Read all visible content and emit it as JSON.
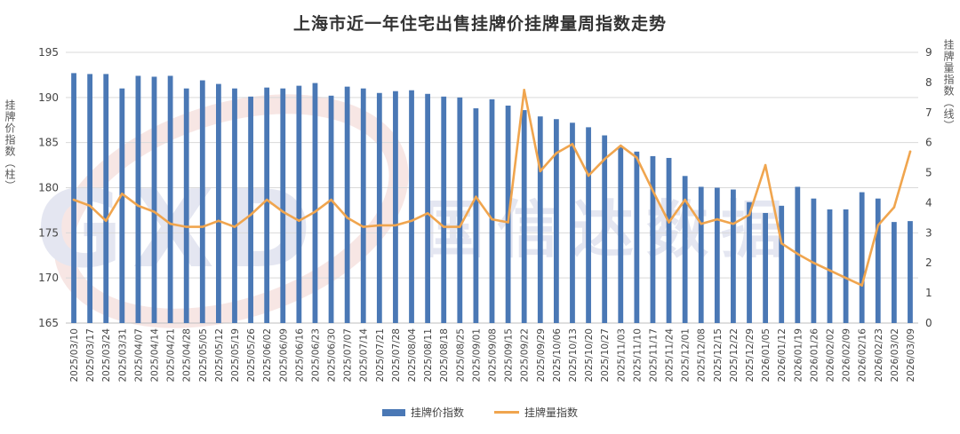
{
  "chart_data": {
    "type": "bar",
    "title": "上海市近一年住宅出售挂牌价挂牌量周指数走势",
    "ylabel_left": "挂牌价指数（柱）",
    "ylabel_right": "挂牌量指数（线）",
    "ylim_left": [
      165,
      195
    ],
    "yticks_left": [
      165,
      170,
      175,
      180,
      185,
      190,
      195
    ],
    "ylim_right": [
      0,
      9
    ],
    "yticks_right": [
      0,
      1,
      2,
      3,
      4,
      5,
      6,
      7,
      8,
      9
    ],
    "grid": true,
    "legend_placement": "bottom",
    "colors": {
      "bars": "#4A78B5",
      "line": "#F0A54E"
    },
    "categories": [
      "2025/03/10",
      "2025/03/17",
      "2025/03/24",
      "2025/03/31",
      "2025/04/07",
      "2025/04/14",
      "2025/04/21",
      "2025/04/28",
      "2025/05/05",
      "2025/05/12",
      "2025/05/19",
      "2025/05/26",
      "2025/06/02",
      "2025/06/09",
      "2025/06/16",
      "2025/06/23",
      "2025/06/30",
      "2025/07/07",
      "2025/07/14",
      "2025/07/21",
      "2025/07/28",
      "2025/08/04",
      "2025/08/11",
      "2025/08/18",
      "2025/08/25",
      "2025/09/01",
      "2025/09/08",
      "2025/09/15",
      "2025/09/22",
      "2025/09/29",
      "2025/10/06",
      "2025/10/13",
      "2025/10/20",
      "2025/10/27",
      "2025/11/03",
      "2025/11/10",
      "2025/11/17",
      "2025/11/24",
      "2025/12/01",
      "2025/12/08",
      "2025/12/15",
      "2025/12/22",
      "2025/12/29",
      "2026/01/05",
      "2026/01/12",
      "2026/01/19",
      "2026/01/26",
      "2026/02/02",
      "2026/02/09",
      "2026/02/16",
      "2026/02/23",
      "2026/03/02",
      "2026/03/09"
    ],
    "series": [
      {
        "name": "挂牌价指数",
        "type": "bar",
        "axis": "left",
        "values": [
          192.7,
          192.6,
          192.6,
          191.0,
          192.4,
          192.3,
          192.4,
          191.0,
          191.9,
          191.5,
          191.0,
          190.1,
          191.1,
          191.0,
          191.3,
          191.6,
          190.2,
          191.2,
          191.0,
          190.5,
          190.7,
          190.8,
          190.4,
          190.1,
          190.0,
          188.8,
          189.8,
          189.1,
          188.6,
          187.9,
          187.6,
          187.2,
          186.7,
          185.8,
          184.6,
          184.0,
          183.5,
          183.3,
          181.3,
          180.1,
          180.0,
          179.8,
          178.4,
          177.2,
          178.0,
          180.1,
          178.8,
          177.6,
          177.6,
          179.5,
          178.8,
          176.2,
          176.3
        ]
      },
      {
        "name": "挂牌量指数",
        "type": "line",
        "axis": "right",
        "values": [
          4.1,
          3.9,
          3.4,
          4.3,
          3.9,
          3.7,
          3.3,
          3.2,
          3.2,
          3.4,
          3.2,
          3.6,
          4.1,
          3.7,
          3.4,
          3.7,
          4.1,
          3.5,
          3.2,
          3.25,
          3.25,
          3.4,
          3.65,
          3.2,
          3.2,
          4.2,
          3.45,
          3.35,
          7.75,
          5.05,
          5.65,
          5.95,
          4.9,
          5.45,
          5.9,
          5.5,
          4.4,
          3.35,
          4.1,
          3.3,
          3.45,
          3.3,
          3.6,
          5.25,
          2.65,
          2.3,
          2.0,
          1.75,
          1.5,
          1.25,
          3.25,
          3.85,
          5.7
        ]
      }
    ]
  },
  "legend": {
    "bar_label": "挂牌价指数",
    "line_label": "挂牌量指数"
  },
  "watermark": {
    "text": "国信达数据",
    "letters": "GXD"
  }
}
